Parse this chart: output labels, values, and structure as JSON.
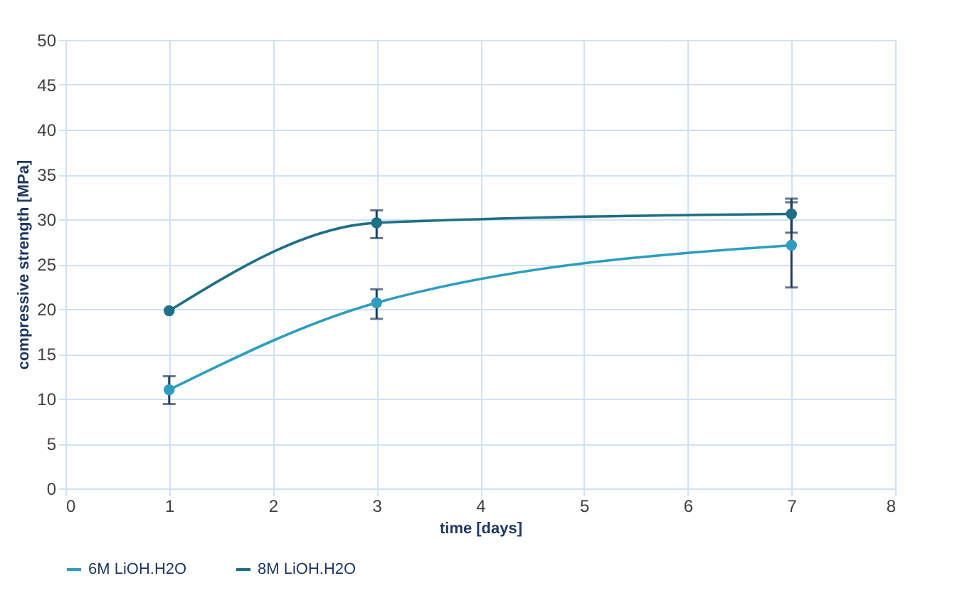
{
  "chart_data": {
    "type": "line",
    "xlabel": "time [days]",
    "ylabel": "compressive strength [MPa]",
    "x": [
      1,
      3,
      7
    ],
    "series": [
      {
        "name": "6M LiOH.H2O",
        "color": "#2e9dbf",
        "values": [
          11,
          20.7,
          27.1
        ],
        "errors": [
          [
            9.4,
            12.5
          ],
          [
            18.9,
            22.2
          ],
          [
            22.4,
            32.3
          ]
        ]
      },
      {
        "name": "8M LiOH.H2O",
        "color": "#1f6f86",
        "values": [
          19.8,
          29.6,
          30.6
        ],
        "errors": [
          null,
          [
            27.9,
            31
          ],
          [
            28.5,
            31.9
          ]
        ]
      }
    ],
    "xlim": [
      0,
      8
    ],
    "xticks": [
      0,
      1,
      2,
      3,
      4,
      5,
      6,
      7,
      8
    ],
    "ylim": [
      0,
      50
    ],
    "yticks": [
      0,
      5,
      10,
      15,
      20,
      25,
      30,
      35,
      40,
      45,
      50
    ],
    "grid": true,
    "legend": "bottom",
    "marker": "circle",
    "line_style": "solid"
  }
}
